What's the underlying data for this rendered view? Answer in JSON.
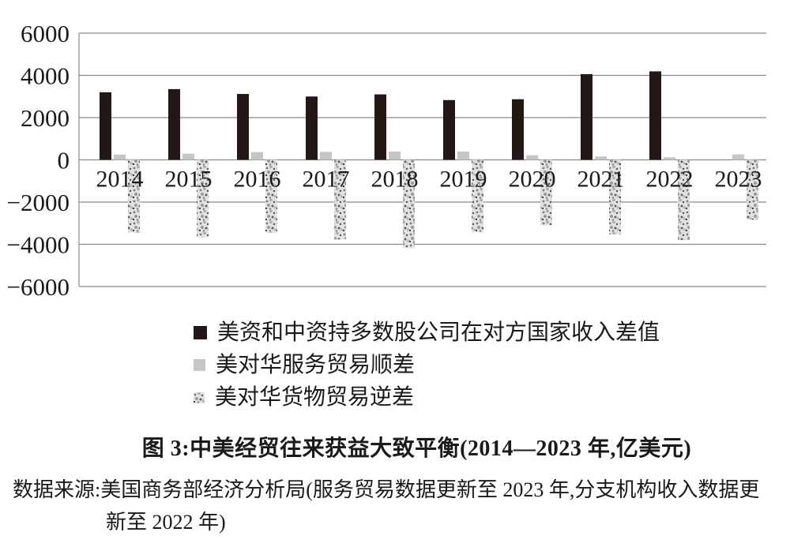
{
  "chart_data": {
    "type": "bar",
    "categories": [
      "2014",
      "2015",
      "2016",
      "2017",
      "2018",
      "2019",
      "2020",
      "2021",
      "2022",
      "2023"
    ],
    "series": [
      {
        "name": "美资和中资持多数股公司在对方国家收入差值",
        "style": "solid",
        "color": "#231815",
        "values": [
          3200,
          3350,
          3120,
          3000,
          3100,
          2830,
          2870,
          4060,
          4190,
          null
        ]
      },
      {
        "name": "美对华服务贸易顺差",
        "style": "solid",
        "color": "#c6c6c6",
        "values": [
          250,
          290,
          370,
          380,
          390,
          390,
          220,
          160,
          120,
          260
        ]
      },
      {
        "name": "美对华货物贸易逆差",
        "style": "speckled",
        "color": "#e2e2e2",
        "values": [
          -3450,
          -3670,
          -3450,
          -3770,
          -4180,
          -3430,
          -3100,
          -3530,
          -3800,
          -2830
        ]
      }
    ],
    "ylim": [
      -6000,
      6000
    ],
    "ytick_values": [
      6000,
      4000,
      2000,
      0,
      -2000,
      -4000,
      -6000
    ],
    "ytick_labels": [
      "6000",
      "4000",
      "2000",
      "0",
      "−2000",
      "−4000",
      "−6000"
    ],
    "xlabel": "",
    "ylabel": "",
    "grid": true,
    "gridline_color": "#8a8a8a",
    "legend_position": "bottom-left"
  },
  "title": "图 3:中美经贸往来获益大致平衡(2014—2023 年,亿美元)",
  "source": {
    "line1": "数据来源:美国商务部经济分析局(服务贸易数据更新至 2023 年,分支机构收入数据更",
    "line2": "新至 2022 年)"
  }
}
